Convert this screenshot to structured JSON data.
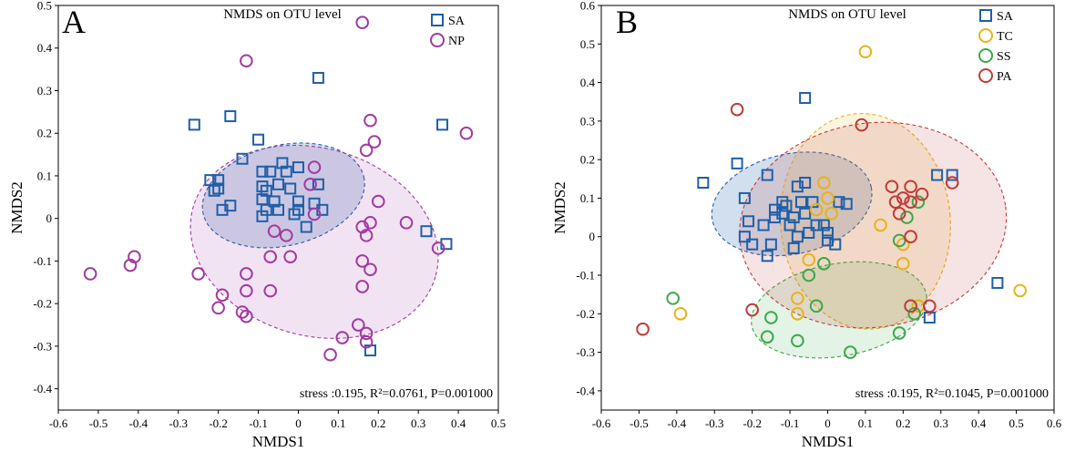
{
  "chart_data": [
    {
      "type": "scatter",
      "panel_label": "A",
      "title": "NMDS on OTU level",
      "xlabel": "NMDS1",
      "ylabel": "NMDS2",
      "xlim": [
        -0.6,
        0.5
      ],
      "ylim": [
        -0.45,
        0.5
      ],
      "xticks": [
        "-0.6",
        "-0.5",
        "-0.4",
        "-0.3",
        "-0.2",
        "-0.1",
        "0",
        "0.1",
        "0.2",
        "0.3",
        "0.4",
        "0.5"
      ],
      "yticks": [
        "0.5",
        "0.4",
        "0.3",
        "0.2",
        "0.1",
        "0",
        "-0.1",
        "-0.2",
        "-0.3",
        "-0.4"
      ],
      "legend_position": "top-right",
      "stats": "stress :0.195, R²=0.0761, P=0.001000",
      "series": [
        {
          "name": "SA",
          "marker": "square",
          "color": "#1f5fa8",
          "ellipse": {
            "cx": -0.037,
            "cy": 0.054,
            "rx": 0.206,
            "ry": 0.118,
            "angle_deg": -13
          },
          "points": [
            [
              0.05,
              0.33
            ],
            [
              -0.26,
              0.22
            ],
            [
              -0.17,
              0.24
            ],
            [
              0.36,
              0.22
            ],
            [
              -0.1,
              0.185
            ],
            [
              -0.14,
              0.14
            ],
            [
              -0.2,
              0.09
            ],
            [
              -0.22,
              0.09
            ],
            [
              -0.2,
              0.07
            ],
            [
              -0.21,
              0.065
            ],
            [
              -0.09,
              0.11
            ],
            [
              -0.07,
              0.11
            ],
            [
              -0.04,
              0.13
            ],
            [
              -0.03,
              0.11
            ],
            [
              0.0,
              0.12
            ],
            [
              -0.05,
              0.08
            ],
            [
              -0.09,
              0.075
            ],
            [
              -0.08,
              0.065
            ],
            [
              0.05,
              0.08
            ],
            [
              -0.02,
              0.07
            ],
            [
              -0.09,
              0.045
            ],
            [
              -0.06,
              0.04
            ],
            [
              0.0,
              0.04
            ],
            [
              0.04,
              0.035
            ],
            [
              -0.17,
              0.03
            ],
            [
              -0.19,
              0.02
            ],
            [
              -0.08,
              0.02
            ],
            [
              -0.09,
              0.005
            ],
            [
              -0.05,
              0.02
            ],
            [
              0.0,
              0.02
            ],
            [
              0.06,
              0.02
            ],
            [
              -0.01,
              0.01
            ],
            [
              0.02,
              -0.02
            ],
            [
              0.32,
              -0.03
            ],
            [
              0.37,
              -0.06
            ],
            [
              0.18,
              -0.31
            ]
          ]
        },
        {
          "name": "NP",
          "marker": "circle",
          "color": "#a23aa0",
          "ellipse": {
            "cx": 0.04,
            "cy": -0.055,
            "rx": 0.315,
            "ry": 0.22,
            "angle_deg": 16
          },
          "points": [
            [
              0.16,
              0.46
            ],
            [
              -0.13,
              0.37
            ],
            [
              0.18,
              0.23
            ],
            [
              0.42,
              0.2
            ],
            [
              0.17,
              0.16
            ],
            [
              0.19,
              0.18
            ],
            [
              0.04,
              0.12
            ],
            [
              0.03,
              0.08
            ],
            [
              0.2,
              0.04
            ],
            [
              0.04,
              0.01
            ],
            [
              0.18,
              -0.01
            ],
            [
              0.27,
              -0.01
            ],
            [
              0.16,
              -0.02
            ],
            [
              -0.06,
              -0.03
            ],
            [
              -0.03,
              -0.04
            ],
            [
              0.17,
              -0.04
            ],
            [
              0.35,
              -0.07
            ],
            [
              -0.07,
              -0.09
            ],
            [
              -0.02,
              -0.09
            ],
            [
              -0.52,
              -0.13
            ],
            [
              -0.41,
              -0.09
            ],
            [
              -0.42,
              -0.11
            ],
            [
              0.16,
              -0.1
            ],
            [
              0.18,
              -0.12
            ],
            [
              -0.25,
              -0.13
            ],
            [
              -0.13,
              -0.13
            ],
            [
              0.16,
              -0.16
            ],
            [
              -0.19,
              -0.18
            ],
            [
              -0.13,
              -0.17
            ],
            [
              -0.07,
              -0.17
            ],
            [
              -0.2,
              -0.21
            ],
            [
              -0.14,
              -0.22
            ],
            [
              -0.13,
              -0.23
            ],
            [
              0.15,
              -0.25
            ],
            [
              0.17,
              -0.27
            ],
            [
              0.11,
              -0.28
            ],
            [
              0.17,
              -0.29
            ],
            [
              0.08,
              -0.32
            ]
          ]
        }
      ]
    },
    {
      "type": "scatter",
      "panel_label": "B",
      "title": "NMDS on OTU level",
      "xlabel": "NMDS1",
      "ylabel": "NMDS2",
      "xlim": [
        -0.6,
        0.6
      ],
      "ylim": [
        -0.45,
        0.6
      ],
      "xticks": [
        "-0.6",
        "-0.5",
        "-0.4",
        "-0.3",
        "-0.2",
        "-0.1",
        "0",
        "0.1",
        "0.2",
        "0.3",
        "0.4",
        "0.5",
        "0.6"
      ],
      "yticks": [
        "0.6",
        "0.5",
        "0.4",
        "0.3",
        "0.2",
        "0.1",
        "0",
        "-0.1",
        "-0.2",
        "-0.3",
        "-0.4"
      ],
      "legend_position": "top-right",
      "stats": "stress :0.195, R²=0.1045, P=0.001000",
      "series": [
        {
          "name": "SA",
          "marker": "square",
          "color": "#1f5fa8",
          "ellipse": {
            "cx": -0.095,
            "cy": 0.085,
            "rx": 0.215,
            "ry": 0.13,
            "angle_deg": -12
          },
          "points": [
            [
              -0.06,
              0.36
            ],
            [
              -0.24,
              0.19
            ],
            [
              -0.33,
              0.14
            ],
            [
              -0.16,
              0.16
            ],
            [
              0.29,
              0.16
            ],
            [
              0.33,
              0.16
            ],
            [
              -0.06,
              0.14
            ],
            [
              -0.08,
              0.13
            ],
            [
              -0.12,
              0.09
            ],
            [
              -0.11,
              0.08
            ],
            [
              -0.22,
              0.1
            ],
            [
              -0.14,
              0.07
            ],
            [
              -0.07,
              0.09
            ],
            [
              -0.04,
              0.09
            ],
            [
              0.03,
              0.09
            ],
            [
              0.05,
              0.085
            ],
            [
              -0.12,
              0.06
            ],
            [
              -0.09,
              0.05
            ],
            [
              -0.06,
              0.06
            ],
            [
              -0.14,
              0.05
            ],
            [
              -0.17,
              0.03
            ],
            [
              -0.21,
              0.04
            ],
            [
              -0.1,
              0.03
            ],
            [
              -0.03,
              0.03
            ],
            [
              -0.01,
              0.03
            ],
            [
              0.0,
              0.01
            ],
            [
              -0.05,
              0.01
            ],
            [
              -0.08,
              0.0
            ],
            [
              -0.22,
              0.0
            ],
            [
              -0.2,
              -0.02
            ],
            [
              -0.15,
              -0.02
            ],
            [
              -0.09,
              -0.03
            ],
            [
              0.02,
              -0.02
            ],
            [
              0.0,
              -0.01
            ],
            [
              -0.16,
              -0.05
            ],
            [
              0.45,
              -0.12
            ],
            [
              0.27,
              -0.21
            ]
          ]
        },
        {
          "name": "TC",
          "marker": "circle",
          "color": "#e6b31a",
          "ellipse": {
            "cx": 0.1,
            "cy": 0.04,
            "rx": 0.225,
            "ry": 0.28,
            "angle_deg": -5
          },
          "points": [
            [
              0.1,
              0.48
            ],
            [
              -0.01,
              0.14
            ],
            [
              0.0,
              0.1
            ],
            [
              -0.03,
              0.07
            ],
            [
              0.01,
              0.06
            ],
            [
              0.14,
              0.03
            ],
            [
              0.2,
              -0.02
            ],
            [
              0.2,
              -0.07
            ],
            [
              -0.05,
              -0.06
            ],
            [
              0.51,
              -0.14
            ],
            [
              -0.08,
              -0.16
            ],
            [
              -0.08,
              -0.2
            ],
            [
              -0.39,
              -0.2
            ],
            [
              0.24,
              -0.18
            ]
          ]
        },
        {
          "name": "SS",
          "marker": "circle",
          "color": "#3aa84a",
          "ellipse": {
            "cx": 0.03,
            "cy": -0.19,
            "rx": 0.235,
            "ry": 0.12,
            "angle_deg": -10
          },
          "points": [
            [
              0.24,
              0.09
            ],
            [
              0.21,
              0.05
            ],
            [
              0.19,
              -0.01
            ],
            [
              -0.01,
              -0.07
            ],
            [
              -0.05,
              -0.1
            ],
            [
              -0.41,
              -0.16
            ],
            [
              -0.03,
              -0.18
            ],
            [
              -0.15,
              -0.21
            ],
            [
              0.23,
              -0.2
            ],
            [
              -0.16,
              -0.26
            ],
            [
              -0.08,
              -0.27
            ],
            [
              0.19,
              -0.25
            ],
            [
              0.06,
              -0.3
            ]
          ]
        },
        {
          "name": "PA",
          "marker": "circle",
          "color": "#c03a3a",
          "ellipse": {
            "cx": 0.12,
            "cy": 0.03,
            "rx": 0.355,
            "ry": 0.265,
            "angle_deg": -8
          },
          "points": [
            [
              -0.24,
              0.33
            ],
            [
              0.09,
              0.29
            ],
            [
              0.17,
              0.13
            ],
            [
              0.22,
              0.13
            ],
            [
              0.33,
              0.14
            ],
            [
              0.25,
              0.11
            ],
            [
              0.18,
              0.09
            ],
            [
              0.22,
              0.09
            ],
            [
              0.2,
              0.1
            ],
            [
              0.19,
              0.06
            ],
            [
              0.22,
              0.0
            ],
            [
              0.22,
              -0.18
            ],
            [
              0.27,
              -0.18
            ],
            [
              -0.2,
              -0.19
            ],
            [
              -0.49,
              -0.24
            ]
          ]
        }
      ]
    }
  ]
}
